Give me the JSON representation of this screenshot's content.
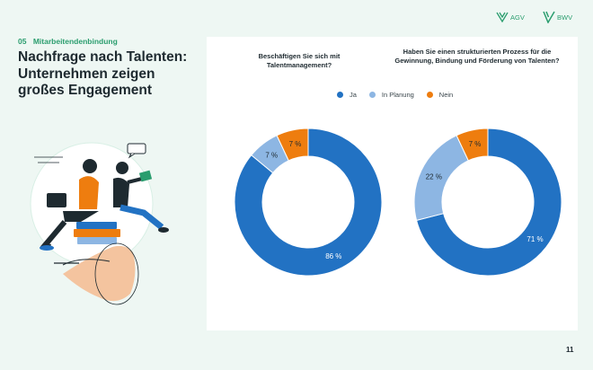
{
  "section": {
    "number": "05",
    "label": "Mitarbeitendenbindung"
  },
  "title": "Nachfrage nach Talenten: Unternehmen zeigen großes Engagement",
  "logos": {
    "agv": "AGV",
    "bwv": "BWV"
  },
  "legend": [
    "Ja",
    "In Planung",
    "Nein"
  ],
  "colors": {
    "Ja": "#2272c3",
    "In Planung": "#8db6e3",
    "Nein": "#ee7d0f",
    "accent": "#2a9d6e"
  },
  "chart_data": [
    {
      "type": "pie",
      "title": "Beschäftigen Sie sich mit Talentmanagement?",
      "categories": [
        "Ja",
        "In Planung",
        "Nein"
      ],
      "values": [
        86,
        7,
        7
      ],
      "labels": [
        "86 %",
        "7 %",
        "7 %"
      ]
    },
    {
      "type": "pie",
      "title": "Haben Sie einen strukturierten Prozess für die Gewinnung, Bindung und Förderung von Talenten?",
      "categories": [
        "Ja",
        "In Planung",
        "Nein"
      ],
      "values": [
        71,
        22,
        7
      ],
      "labels": [
        "71 %",
        "22 %",
        "7 %"
      ]
    }
  ],
  "page_number": "11"
}
